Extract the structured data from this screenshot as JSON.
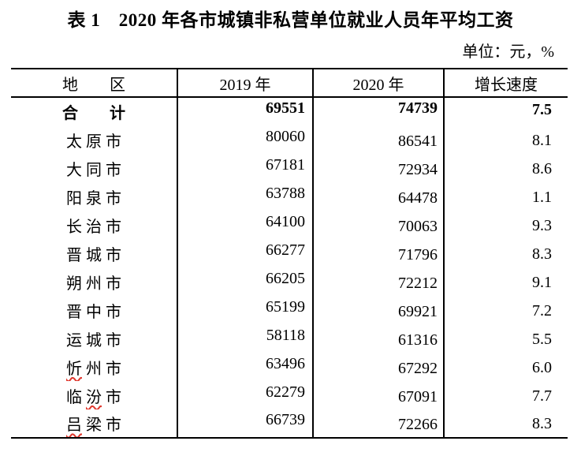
{
  "page": {
    "title": "表 1　2020 年各市城镇非私营单位就业人员年平均工资",
    "unit_note": "单位：元，%"
  },
  "table": {
    "columns": [
      {
        "key": "region",
        "label": "地　　区"
      },
      {
        "key": "y2019",
        "label": "2019 年"
      },
      {
        "key": "y2020",
        "label": "2020 年"
      },
      {
        "key": "growth",
        "label": "增长速度"
      }
    ],
    "rows": [
      {
        "region": "合　　计",
        "y2019": "69551",
        "y2020": "74739",
        "growth": "7.5",
        "bold": true
      },
      {
        "region": "太 原 市",
        "y2019": "80060",
        "y2020": "86541",
        "growth": "8.1"
      },
      {
        "region": "大 同 市",
        "y2019": "67181",
        "y2020": "72934",
        "growth": "8.6"
      },
      {
        "region": "阳 泉 市",
        "y2019": "63788",
        "y2020": "64478",
        "growth": "1.1"
      },
      {
        "region": "长 治 市",
        "y2019": "64100",
        "y2020": "70063",
        "growth": "9.3"
      },
      {
        "region": "晋 城 市",
        "y2019": "66277",
        "y2020": "71796",
        "growth": "8.3"
      },
      {
        "region": "朔 州 市",
        "y2019": "66205",
        "y2020": "72212",
        "growth": "9.1"
      },
      {
        "region": "晋 中 市",
        "y2019": "65199",
        "y2020": "69921",
        "growth": "7.2"
      },
      {
        "region": "运 城 市",
        "y2019": "58118",
        "y2020": "61316",
        "growth": "5.5"
      },
      {
        "region": "忻 州 市",
        "y2019": "63496",
        "y2020": "67292",
        "growth": "6.0",
        "misspelled": [
          "忻"
        ]
      },
      {
        "region": "临 汾 市",
        "y2019": "62279",
        "y2020": "67091",
        "growth": "7.7",
        "misspelled": [
          "汾"
        ]
      },
      {
        "region": "吕 梁 市",
        "y2019": "66739",
        "y2020": "72266",
        "growth": "8.3",
        "misspelled": [
          "吕"
        ]
      }
    ]
  },
  "colors": {
    "text": "#000000",
    "background": "#ffffff",
    "table_border": "#000000",
    "spellcheck_underline": "#e0392f"
  }
}
